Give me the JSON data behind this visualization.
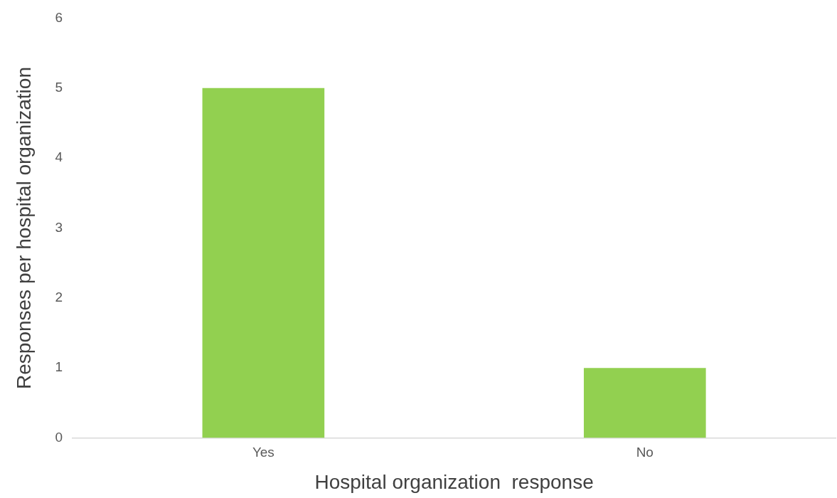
{
  "chart_data": {
    "type": "bar",
    "xlabel": "Hospital organization  response",
    "ylabel": "Responses per hospital organization",
    "categories": [
      "Yes",
      "No"
    ],
    "values": [
      5,
      1
    ],
    "color": "#92d050",
    "ylim": [
      0,
      6
    ],
    "yticks": [
      0,
      1,
      2,
      3,
      4,
      5,
      6
    ],
    "grid": false,
    "legend": false
  }
}
